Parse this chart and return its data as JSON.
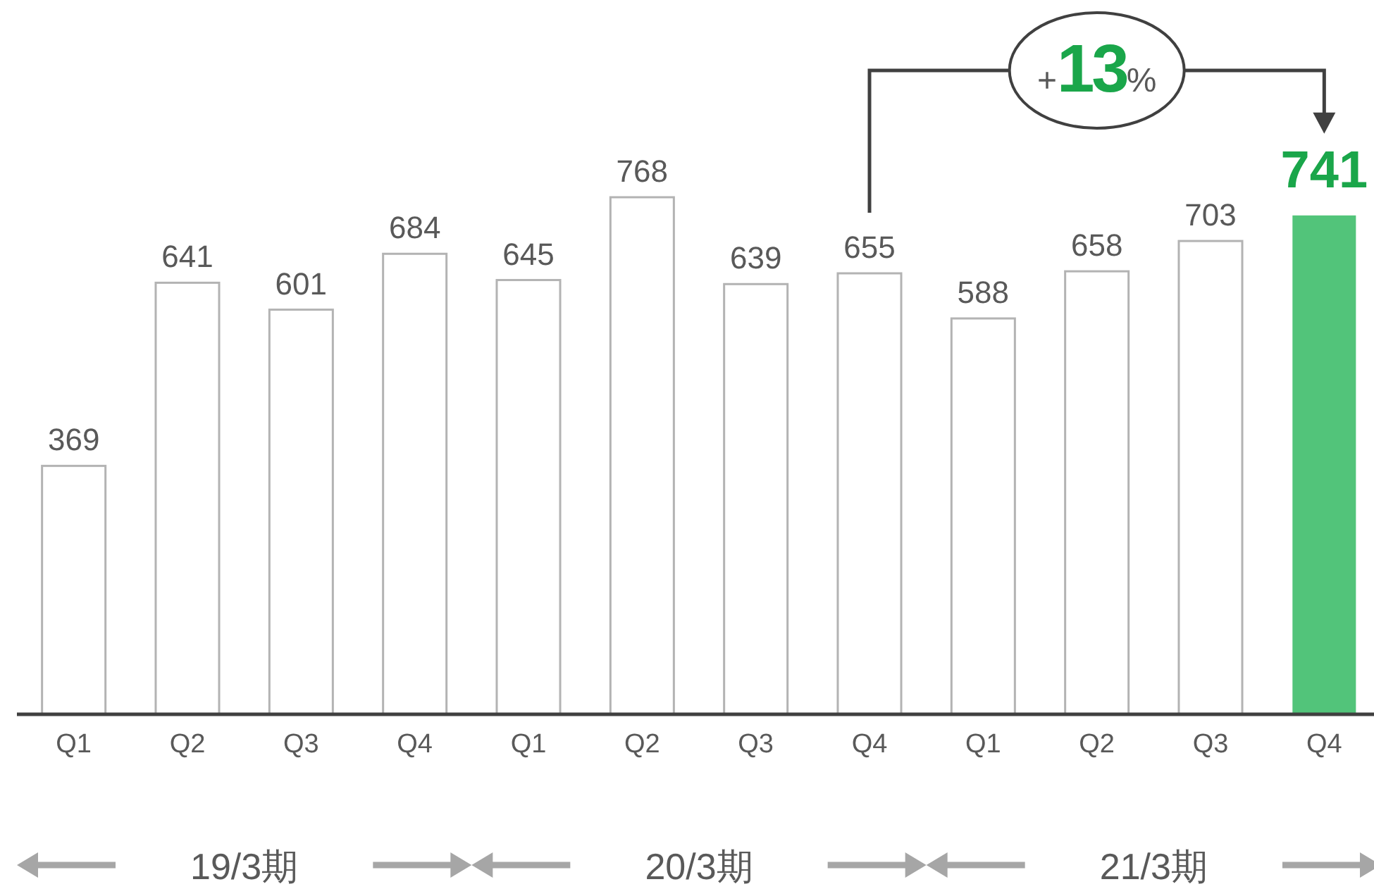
{
  "chart_data": {
    "type": "bar",
    "categories": [
      "Q1",
      "Q2",
      "Q3",
      "Q4",
      "Q1",
      "Q2",
      "Q3",
      "Q4",
      "Q1",
      "Q2",
      "Q3",
      "Q4"
    ],
    "values": [
      369,
      641,
      601,
      684,
      645,
      768,
      639,
      655,
      588,
      658,
      703,
      741
    ],
    "colors": [
      "#ffffff",
      "#ffffff",
      "#ffffff",
      "#ffffff",
      "#ffffff",
      "#ffffff",
      "#ffffff",
      "#ffffff",
      "#ffffff",
      "#ffffff",
      "#ffffff",
      "#52c47a"
    ],
    "data_labels": true,
    "annotations": [
      "+13%",
      "19/3期",
      "20/3期",
      "21/3期"
    ]
  }
}
